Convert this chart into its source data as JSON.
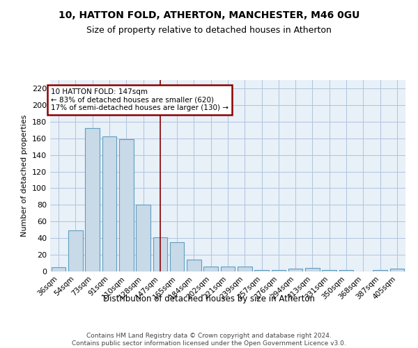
{
  "title_line1": "10, HATTON FOLD, ATHERTON, MANCHESTER, M46 0GU",
  "title_line2": "Size of property relative to detached houses in Atherton",
  "xlabel": "Distribution of detached houses by size in Atherton",
  "ylabel": "Number of detached properties",
  "categories": [
    "36sqm",
    "54sqm",
    "73sqm",
    "91sqm",
    "110sqm",
    "128sqm",
    "147sqm",
    "165sqm",
    "184sqm",
    "202sqm",
    "221sqm",
    "239sqm",
    "257sqm",
    "276sqm",
    "294sqm",
    "313sqm",
    "331sqm",
    "350sqm",
    "368sqm",
    "387sqm",
    "405sqm"
  ],
  "values": [
    5,
    49,
    172,
    162,
    159,
    80,
    41,
    35,
    14,
    6,
    6,
    6,
    2,
    2,
    3,
    4,
    2,
    2,
    0,
    2,
    3
  ],
  "bar_color": "#c8d9e8",
  "bar_edge_color": "#5f9ec0",
  "marker_index": 6,
  "annotation_line1": "10 HATTON FOLD: 147sqm",
  "annotation_line2": "← 83% of detached houses are smaller (620)",
  "annotation_line3": "17% of semi-detached houses are larger (130) →",
  "vline_color": "#8b0000",
  "annotation_box_edgecolor": "#8b0000",
  "ylim": [
    0,
    230
  ],
  "yticks": [
    0,
    20,
    40,
    60,
    80,
    100,
    120,
    140,
    160,
    180,
    200,
    220
  ],
  "grid_color": "#b0c4de",
  "background_color": "#e8f0f8",
  "footer_line1": "Contains HM Land Registry data © Crown copyright and database right 2024.",
  "footer_line2": "Contains public sector information licensed under the Open Government Licence v3.0."
}
